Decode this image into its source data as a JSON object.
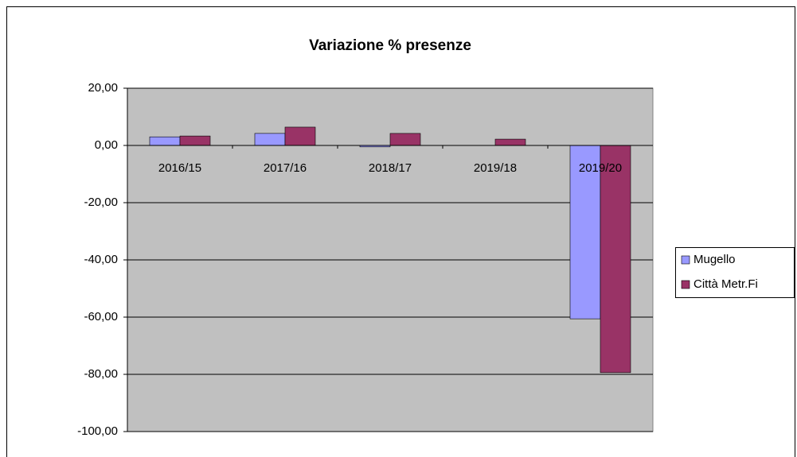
{
  "chart_data": {
    "type": "bar",
    "title": "Variazione % presenze",
    "categories": [
      "2016/15",
      "2017/16",
      "2018/17",
      "2019/18",
      "2019/20"
    ],
    "series": [
      {
        "name": "Mugello",
        "color": "#9999ff",
        "values": [
          3.0,
          4.2,
          -0.5,
          0,
          -60.6
        ]
      },
      {
        "name": "Città Metr.Fi",
        "color": "#993366",
        "values": [
          3.3,
          6.4,
          4.2,
          2.2,
          -79.4
        ]
      }
    ],
    "ylim": [
      -100,
      20
    ],
    "yticks": [
      {
        "value": -100,
        "label": "-100,00"
      },
      {
        "value": -80,
        "label": "-80,00"
      },
      {
        "value": -60,
        "label": "-60,00"
      },
      {
        "value": -40,
        "label": "-40,00"
      },
      {
        "value": -20,
        "label": "-20,00"
      },
      {
        "value": 0,
        "label": "0,00"
      },
      {
        "value": 20,
        "label": "20,00"
      }
    ],
    "grid": true,
    "legend": "right"
  }
}
